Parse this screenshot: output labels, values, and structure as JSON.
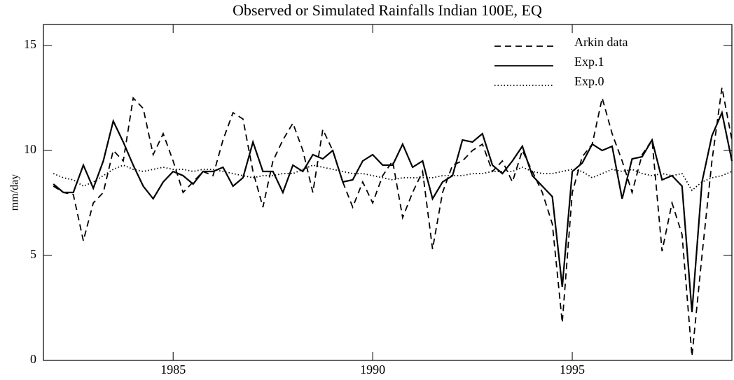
{
  "chart_data": {
    "type": "line",
    "title": "Observed or Simulated Rainfalls Indian 100E, EQ",
    "y_label": "mm/day",
    "x": [
      1982,
      1982.25,
      1982.5,
      1982.75,
      1983,
      1983.25,
      1983.5,
      1983.75,
      1984,
      1984.25,
      1984.5,
      1984.75,
      1985,
      1985.25,
      1985.5,
      1985.75,
      1986,
      1986.25,
      1986.5,
      1986.75,
      1987,
      1987.25,
      1987.5,
      1987.75,
      1988,
      1988.25,
      1988.5,
      1988.75,
      1989,
      1989.25,
      1989.5,
      1989.75,
      1990,
      1990.25,
      1990.5,
      1990.75,
      1991,
      1991.25,
      1991.5,
      1991.75,
      1992,
      1992.25,
      1992.5,
      1992.75,
      1993,
      1993.25,
      1993.5,
      1993.75,
      1994,
      1994.25,
      1994.5,
      1994.75,
      1995,
      1995.25,
      1995.5,
      1995.75,
      1996,
      1996.25,
      1996.5,
      1996.75,
      1997,
      1997.25,
      1997.5,
      1997.75,
      1998,
      1998.25,
      1998.5,
      1998.75,
      1999
    ],
    "series": [
      {
        "name": "Arkin data",
        "color": "#000000",
        "dash": "dashed",
        "values": [
          8.3,
          8.0,
          7.9,
          5.7,
          7.5,
          8.0,
          10.0,
          9.5,
          12.5,
          12.0,
          9.8,
          10.8,
          9.5,
          8.0,
          8.5,
          9.0,
          8.8,
          10.5,
          11.8,
          11.5,
          9.0,
          7.3,
          9.5,
          10.5,
          11.3,
          10.0,
          8.0,
          11.0,
          10.0,
          8.5,
          7.3,
          8.5,
          7.5,
          8.8,
          9.5,
          6.8,
          8.0,
          9.0,
          5.3,
          8.0,
          9.3,
          9.5,
          10.0,
          10.3,
          9.0,
          9.5,
          8.5,
          10.0,
          9.0,
          8.0,
          6.5,
          1.8,
          8.0,
          9.7,
          10.3,
          12.5,
          10.8,
          9.5,
          8.0,
          9.8,
          10.5,
          5.2,
          7.5,
          6.0,
          0.2,
          5.0,
          9.5,
          13.0,
          10.5
        ]
      },
      {
        "name": "Exp.1",
        "color": "#000000",
        "dash": "solid",
        "values": [
          8.4,
          8.0,
          8.0,
          9.3,
          8.2,
          9.5,
          11.4,
          10.4,
          9.3,
          8.3,
          7.7,
          8.5,
          9.0,
          8.8,
          8.4,
          9.0,
          9.0,
          9.2,
          8.3,
          8.7,
          10.4,
          9.0,
          9.0,
          8.0,
          9.3,
          9.0,
          9.8,
          9.6,
          10.0,
          8.5,
          8.6,
          9.5,
          9.8,
          9.3,
          9.3,
          10.3,
          9.2,
          9.5,
          7.7,
          8.5,
          8.8,
          10.5,
          10.4,
          10.8,
          9.3,
          8.9,
          9.5,
          10.2,
          8.8,
          8.3,
          7.8,
          3.5,
          9.0,
          9.4,
          10.3,
          10.0,
          10.2,
          7.7,
          9.6,
          9.7,
          10.5,
          8.6,
          8.8,
          8.3,
          2.3,
          8.5,
          10.7,
          11.8,
          9.5
        ]
      },
      {
        "name": "Exp.0",
        "color": "#000000",
        "dash": "dotted",
        "values": [
          8.9,
          8.7,
          8.6,
          8.3,
          8.5,
          8.8,
          9.1,
          9.3,
          9.1,
          9.0,
          9.1,
          9.2,
          9.1,
          9.1,
          9.0,
          9.1,
          9.1,
          9.0,
          8.9,
          8.8,
          8.7,
          8.8,
          8.8,
          8.9,
          8.9,
          9.1,
          9.3,
          9.2,
          9.1,
          9.0,
          8.9,
          8.9,
          8.8,
          8.7,
          8.6,
          8.7,
          8.7,
          8.7,
          8.7,
          8.8,
          8.8,
          8.8,
          8.9,
          8.9,
          9.0,
          9.0,
          9.0,
          9.2,
          9.0,
          8.9,
          8.9,
          9.0,
          9.1,
          9.0,
          8.7,
          8.9,
          9.1,
          9.0,
          9.1,
          8.9,
          8.8,
          8.9,
          8.8,
          8.9,
          8.1,
          8.5,
          8.7,
          8.8,
          9.0
        ]
      }
    ],
    "xlim": [
      1981.75,
      1999
    ],
    "xticks": [
      1985,
      1990,
      1995
    ],
    "ylim": [
      0,
      16
    ],
    "yticks": [
      0,
      5,
      10,
      15
    ],
    "legend": "upper right"
  }
}
